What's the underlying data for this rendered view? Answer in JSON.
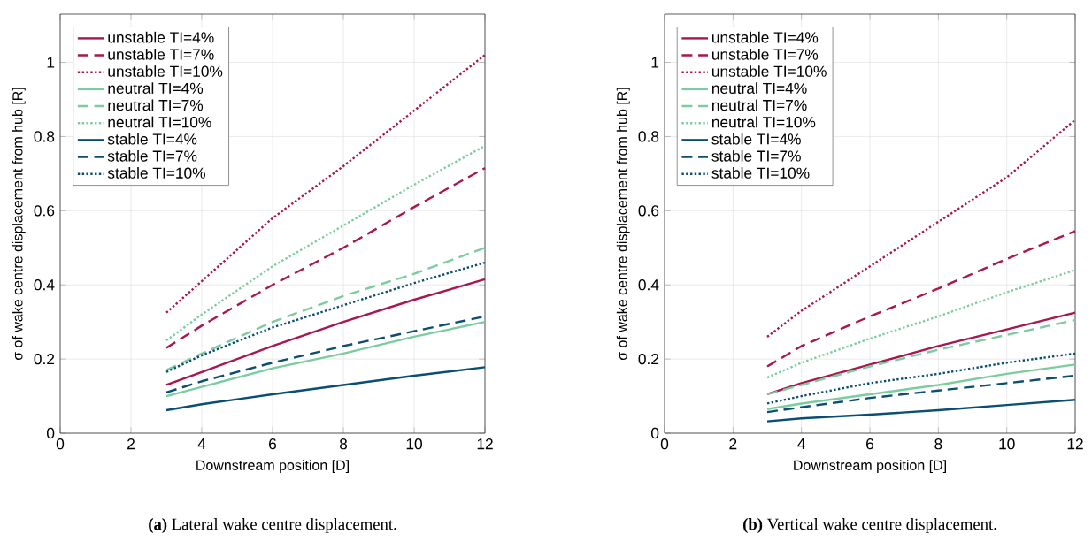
{
  "chart_data": [
    {
      "type": "line",
      "xlabel": "Downstream position [D]",
      "ylabel": "σ of wake centre displacement from hub [R]",
      "annotations": [
        "**(a)** Lateral wake centre displacement."
      ],
      "xlim": [
        0,
        12
      ],
      "ylim": [
        0,
        1.13
      ],
      "xticks": [
        0,
        2,
        4,
        6,
        8,
        10,
        12
      ],
      "yticks": [
        0,
        0.2,
        0.4,
        0.6,
        0.8,
        1
      ],
      "grid": true,
      "legend": "top left",
      "x": [
        3,
        4,
        6,
        8,
        10,
        12
      ],
      "series": [
        {
          "name": "unstable TI=4%",
          "color": "#a8174f",
          "line_style": "solid",
          "values": [
            0.13,
            0.165,
            0.235,
            0.3,
            0.36,
            0.415
          ]
        },
        {
          "name": "unstable TI=7%",
          "color": "#a8174f",
          "line_style": "dashed",
          "values": [
            0.23,
            0.29,
            0.4,
            0.5,
            0.61,
            0.715
          ]
        },
        {
          "name": "unstable TI=10%",
          "color": "#a8174f",
          "line_style": "dotted",
          "values": [
            0.325,
            0.41,
            0.58,
            0.72,
            0.87,
            1.02
          ]
        },
        {
          "name": "neutral TI=4%",
          "color": "#7ccca0",
          "line_style": "solid",
          "values": [
            0.1,
            0.125,
            0.175,
            0.215,
            0.26,
            0.3
          ]
        },
        {
          "name": "neutral TI=7%",
          "color": "#7ccca0",
          "line_style": "dashed",
          "values": [
            0.17,
            0.215,
            0.3,
            0.37,
            0.43,
            0.5
          ]
        },
        {
          "name": "neutral TI=10%",
          "color": "#7ccca0",
          "line_style": "dotted",
          "values": [
            0.25,
            0.32,
            0.45,
            0.56,
            0.67,
            0.775
          ]
        },
        {
          "name": "stable TI=4%",
          "color": "#0a4f73",
          "line_style": "solid",
          "values": [
            0.062,
            0.078,
            0.105,
            0.13,
            0.155,
            0.178
          ]
        },
        {
          "name": "stable TI=7%",
          "color": "#0a4f73",
          "line_style": "dashed",
          "values": [
            0.11,
            0.14,
            0.19,
            0.235,
            0.275,
            0.315
          ]
        },
        {
          "name": "stable TI=10%",
          "color": "#0a4f73",
          "line_style": "dotted",
          "values": [
            0.165,
            0.21,
            0.285,
            0.345,
            0.405,
            0.46
          ]
        }
      ]
    },
    {
      "type": "line",
      "xlabel": "Downstream position [D]",
      "ylabel": "σ of wake centre displacement from hub [R]",
      "annotations": [
        "**(b)** Vertical wake centre displacement."
      ],
      "xlim": [
        0,
        12
      ],
      "ylim": [
        0,
        1.13
      ],
      "xticks": [
        0,
        2,
        4,
        6,
        8,
        10,
        12
      ],
      "yticks": [
        0,
        0.2,
        0.4,
        0.6,
        0.8,
        1
      ],
      "grid": true,
      "legend": "top left",
      "x": [
        3,
        4,
        6,
        8,
        10,
        12
      ],
      "series": [
        {
          "name": "unstable TI=4%",
          "color": "#a8174f",
          "line_style": "solid",
          "values": [
            0.105,
            0.135,
            0.185,
            0.235,
            0.28,
            0.325
          ]
        },
        {
          "name": "unstable TI=7%",
          "color": "#a8174f",
          "line_style": "dashed",
          "values": [
            0.18,
            0.235,
            0.315,
            0.39,
            0.47,
            0.545
          ]
        },
        {
          "name": "unstable TI=10%",
          "color": "#a8174f",
          "line_style": "dotted",
          "values": [
            0.26,
            0.33,
            0.45,
            0.57,
            0.69,
            0.845
          ]
        },
        {
          "name": "neutral TI=4%",
          "color": "#7ccca0",
          "line_style": "solid",
          "values": [
            0.065,
            0.08,
            0.105,
            0.13,
            0.16,
            0.185
          ]
        },
        {
          "name": "neutral TI=7%",
          "color": "#7ccca0",
          "line_style": "dashed",
          "values": [
            0.105,
            0.13,
            0.18,
            0.225,
            0.265,
            0.305
          ]
        },
        {
          "name": "neutral TI=10%",
          "color": "#7ccca0",
          "line_style": "dotted",
          "values": [
            0.15,
            0.19,
            0.255,
            0.315,
            0.38,
            0.44
          ]
        },
        {
          "name": "stable TI=4%",
          "color": "#0a4f73",
          "line_style": "solid",
          "values": [
            0.032,
            0.04,
            0.05,
            0.062,
            0.076,
            0.09
          ]
        },
        {
          "name": "stable TI=7%",
          "color": "#0a4f73",
          "line_style": "dashed",
          "values": [
            0.057,
            0.07,
            0.095,
            0.115,
            0.135,
            0.155
          ]
        },
        {
          "name": "stable TI=10%",
          "color": "#0a4f73",
          "line_style": "dotted",
          "values": [
            0.08,
            0.1,
            0.135,
            0.16,
            0.19,
            0.215
          ]
        }
      ]
    }
  ]
}
